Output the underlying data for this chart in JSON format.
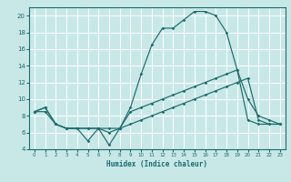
{
  "title": "",
  "xlabel": "Humidex (Indice chaleur)",
  "ylabel": "",
  "bg_color": "#c8e8e8",
  "grid_color": "#ffffff",
  "line_color": "#1a6b6b",
  "xlim": [
    -0.5,
    23.5
  ],
  "ylim": [
    4,
    21
  ],
  "yticks": [
    4,
    6,
    8,
    10,
    12,
    14,
    16,
    18,
    20
  ],
  "xticks": [
    0,
    1,
    2,
    3,
    4,
    5,
    6,
    7,
    8,
    9,
    10,
    11,
    12,
    13,
    14,
    15,
    16,
    17,
    18,
    19,
    20,
    21,
    22,
    23
  ],
  "series1_x": [
    0,
    1,
    2,
    3,
    4,
    5,
    6,
    7,
    8,
    9,
    10,
    11,
    12,
    13,
    14,
    15,
    16,
    17,
    18,
    19,
    20,
    21,
    22,
    23
  ],
  "series1_y": [
    8.5,
    9.0,
    7.0,
    6.5,
    6.5,
    6.5,
    6.5,
    6.0,
    6.5,
    9.0,
    13.0,
    16.5,
    18.5,
    18.5,
    19.5,
    20.5,
    20.5,
    20.0,
    18.0,
    13.5,
    10.0,
    8.0,
    7.5,
    7.0
  ],
  "series2_x": [
    0,
    1,
    2,
    3,
    4,
    5,
    6,
    7,
    8,
    9,
    10,
    11,
    12,
    13,
    14,
    15,
    16,
    17,
    18,
    19,
    20,
    21,
    22,
    23
  ],
  "series2_y": [
    8.5,
    9.0,
    7.0,
    6.5,
    6.5,
    5.0,
    6.5,
    4.5,
    6.5,
    8.5,
    9.0,
    9.5,
    10.0,
    10.5,
    11.0,
    11.5,
    12.0,
    12.5,
    13.0,
    13.5,
    7.5,
    7.0,
    7.0,
    7.0
  ],
  "series3_x": [
    0,
    1,
    2,
    3,
    4,
    5,
    6,
    7,
    8,
    9,
    10,
    11,
    12,
    13,
    14,
    15,
    16,
    17,
    18,
    19,
    20,
    21,
    22,
    23
  ],
  "series3_y": [
    8.5,
    8.5,
    7.0,
    6.5,
    6.5,
    6.5,
    6.5,
    6.5,
    6.5,
    7.0,
    7.5,
    8.0,
    8.5,
    9.0,
    9.5,
    10.0,
    10.5,
    11.0,
    11.5,
    12.0,
    12.5,
    7.5,
    7.0,
    7.0
  ],
  "figsize": [
    3.2,
    2.0
  ],
  "dpi": 100
}
